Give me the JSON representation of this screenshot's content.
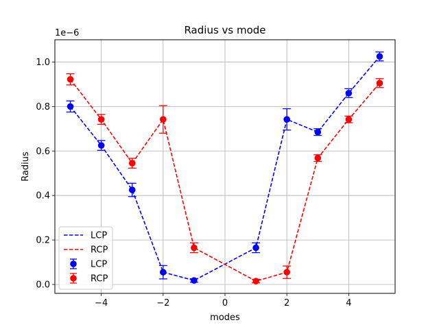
{
  "chart_data": {
    "type": "line",
    "title": "Radius vs mode",
    "xlabel": "modes",
    "ylabel": "Radius",
    "y_offset_text": "1e−6",
    "xlim": [
      -5.5,
      5.5
    ],
    "ylim": [
      -0.04,
      1.1
    ],
    "xticks": [
      -4,
      -2,
      0,
      2,
      4
    ],
    "xtick_labels": [
      "−4",
      "−2",
      "0",
      "2",
      "4"
    ],
    "yticks": [
      0.0,
      0.2,
      0.4,
      0.6,
      0.8,
      1.0
    ],
    "ytick_labels": [
      "0.0",
      "0.2",
      "0.4",
      "0.6",
      "0.8",
      "1.0"
    ],
    "grid": true,
    "legend_position": "lower-left",
    "legend": [
      {
        "label": "LCP",
        "kind": "line",
        "series": 0
      },
      {
        "label": "RCP",
        "kind": "line",
        "series": 1
      },
      {
        "label": "LCP",
        "kind": "errorbar",
        "series": 0
      },
      {
        "label": "RCP",
        "kind": "errorbar",
        "series": 1
      }
    ],
    "x": [
      -5,
      -4,
      -3,
      -2,
      -1,
      1,
      2,
      3,
      4,
      5
    ],
    "series": [
      {
        "name": "LCP",
        "color": "#0000ff",
        "values": [
          0.8,
          0.625,
          0.425,
          0.055,
          0.018,
          0.165,
          0.742,
          0.685,
          0.86,
          1.025
        ],
        "errors": [
          0.025,
          0.022,
          0.03,
          0.03,
          0.008,
          0.022,
          0.048,
          0.015,
          0.02,
          0.02
        ]
      },
      {
        "name": "RCP",
        "color": "#ff0000",
        "values": [
          0.922,
          0.742,
          0.545,
          0.742,
          0.165,
          0.015,
          0.055,
          0.568,
          0.742,
          0.905
        ],
        "errors": [
          0.025,
          0.022,
          0.022,
          0.062,
          0.022,
          0.008,
          0.028,
          0.015,
          0.015,
          0.02
        ]
      }
    ]
  }
}
